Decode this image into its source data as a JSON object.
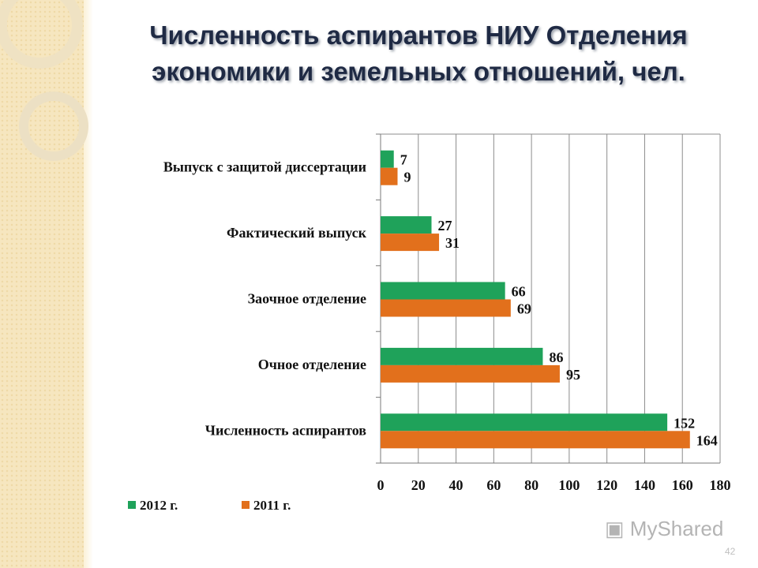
{
  "slide": {
    "title_line1": "Численность аспирантов НИУ Отделения",
    "title_line2": "экономики и земельных отношений, чел.",
    "watermark": "MyShared",
    "page_number": "42"
  },
  "chart_data": {
    "type": "bar",
    "orientation": "horizontal",
    "categories": [
      "Выпуск с защитой диссертации",
      "Фактический выпуск",
      "Заочное отделение",
      "Очное отделение",
      "Численность аспирантов"
    ],
    "series": [
      {
        "name": "2012 г.",
        "color": "#1fa25a",
        "values": [
          7,
          27,
          66,
          86,
          152
        ]
      },
      {
        "name": "2011 г.",
        "color": "#e2701c",
        "values": [
          9,
          31,
          69,
          95,
          164
        ]
      }
    ],
    "xlim": [
      0,
      180
    ],
    "xticks": [
      "0",
      "20",
      "40",
      "60",
      "80",
      "100",
      "120",
      "140",
      "160",
      "180"
    ],
    "grid": "vertical",
    "legend_position": "bottom-left",
    "data_labels": true
  }
}
